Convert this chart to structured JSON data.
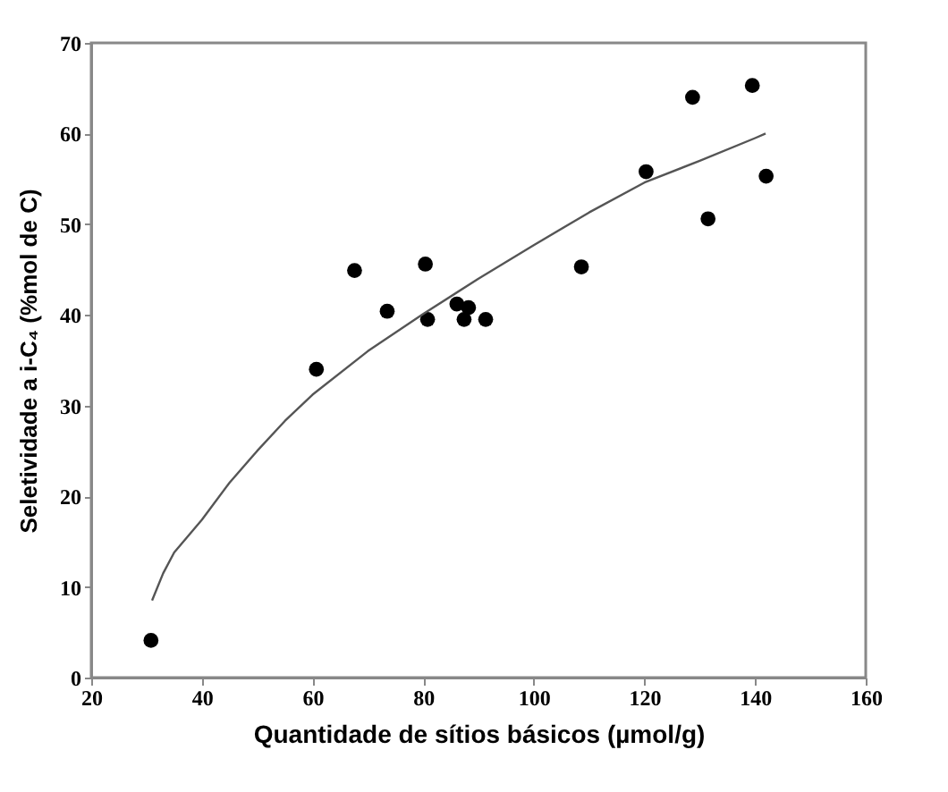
{
  "chart_data": {
    "type": "scatter",
    "xlabel": "Quantidade de sítios básicos (µmol/g)",
    "ylabel": "Seletividade a i-C₄ (%mol de C)",
    "xlim": [
      20,
      160
    ],
    "xticks": [
      20,
      40,
      60,
      80,
      100,
      120,
      140,
      160
    ],
    "ylim": [
      0,
      70
    ],
    "yticks": [
      0,
      10,
      20,
      30,
      40,
      50,
      60,
      70
    ],
    "grid": false,
    "series": [
      {
        "color": "#000000",
        "marker": "circle",
        "x": [
          30.8,
          60.7,
          67.6,
          73.5,
          80.4,
          80.8,
          86.1,
          87.4,
          88.2,
          91.3,
          108.6,
          120.3,
          128.7,
          131.5,
          139.5,
          142.0
        ],
        "values": [
          4.1,
          34.0,
          44.9,
          40.4,
          45.6,
          39.5,
          41.2,
          39.5,
          40.8,
          39.5,
          45.3,
          55.8,
          64.0,
          50.6,
          65.3,
          55.3
        ]
      },
      {
        "type": "line",
        "color": "#555555",
        "line_style": "solid",
        "x": [
          31,
          33,
          35,
          40,
          45,
          50,
          55,
          60,
          70,
          80,
          90,
          100,
          110,
          120,
          130,
          140,
          141.9
        ],
        "values": [
          8.5,
          11.5,
          13.8,
          17.4,
          21.5,
          25.0,
          28.3,
          31.2,
          36.0,
          40.1,
          44.0,
          47.7,
          51.3,
          54.6,
          57.0,
          59.5,
          60.0
        ]
      }
    ]
  }
}
